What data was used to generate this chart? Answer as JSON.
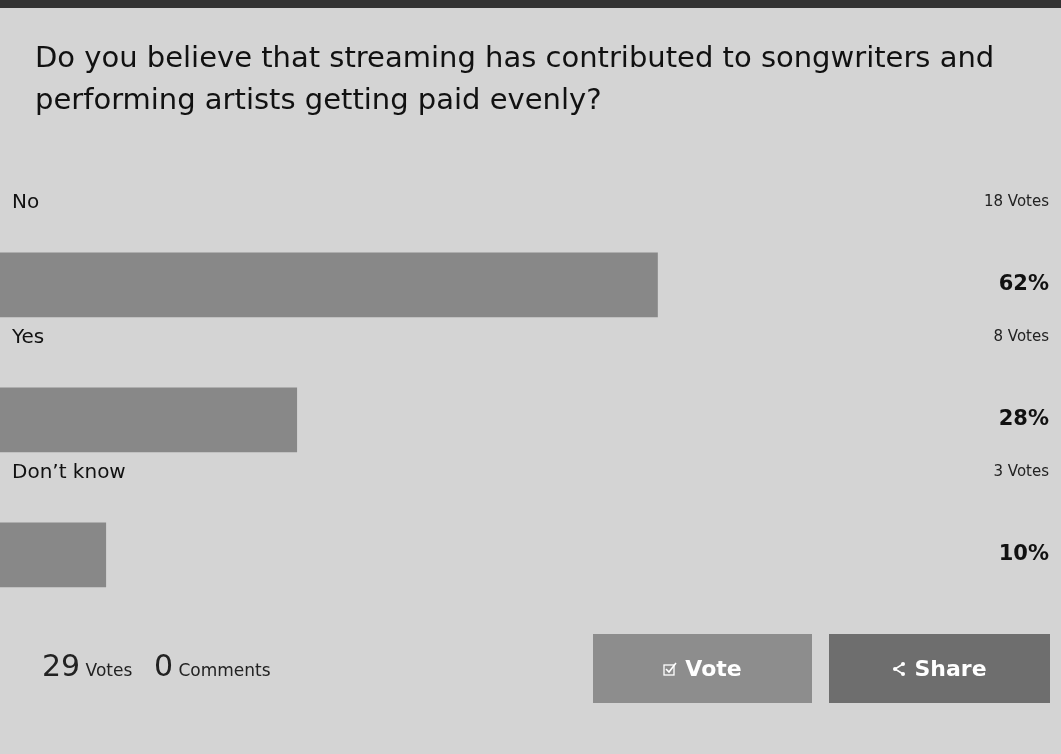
{
  "chart_data": {
    "type": "bar",
    "orientation": "horizontal",
    "title": "Do you believe that streaming has contributed to songwriters and performing artists getting paid evenly?",
    "categories": [
      "No",
      "Yes",
      "Don’t know"
    ],
    "series": [
      {
        "color": "#888888",
        "values": [
          62,
          28,
          10
        ],
        "value_labels": [
          "62%",
          "28%",
          "10%"
        ]
      }
    ],
    "xlim": [
      0,
      100
    ],
    "tick_labels": false,
    "legend": false,
    "annotations": [
      "18 Votes",
      "8 Votes",
      "3 Votes",
      "29 Votes",
      "0 Comments",
      "Vote",
      "Share"
    ]
  }
}
